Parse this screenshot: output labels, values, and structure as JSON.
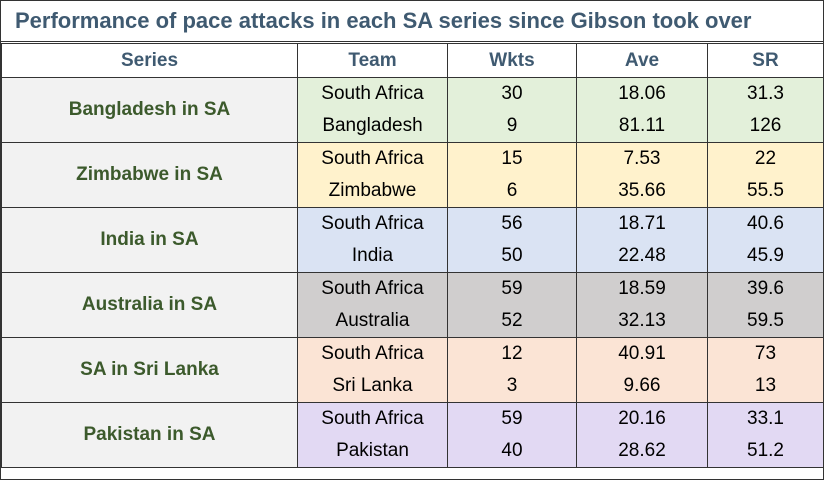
{
  "title": "Performance of pace attacks in each SA series since Gibson took over",
  "columns": {
    "series": "Series",
    "team": "Team",
    "wkts": "Wkts",
    "ave": "Ave",
    "sr": "SR"
  },
  "colors": {
    "title_text": "#3f5a71",
    "series_text": "#3c5a2c",
    "series_bg": "#f2f2f2",
    "bangladesh_bg": "#e3f0da",
    "zimbabwe_bg": "#fff2cc",
    "india_bg": "#dae3f3",
    "australia_bg": "#d0cece",
    "srilanka_bg": "#fbe4d5",
    "pakistan_bg": "#e2d9f3"
  },
  "series": [
    {
      "name": "Bangladesh in SA",
      "color": "#e3f0da",
      "rows": [
        {
          "team": "South Africa",
          "wkts": "30",
          "ave": "18.06",
          "sr": "31.3"
        },
        {
          "team": "Bangladesh",
          "wkts": "9",
          "ave": "81.11",
          "sr": "126"
        }
      ]
    },
    {
      "name": "Zimbabwe in SA",
      "color": "#fff2cc",
      "rows": [
        {
          "team": "South Africa",
          "wkts": "15",
          "ave": "7.53",
          "sr": "22"
        },
        {
          "team": "Zimbabwe",
          "wkts": "6",
          "ave": "35.66",
          "sr": "55.5"
        }
      ]
    },
    {
      "name": "India in SA",
      "color": "#dae3f3",
      "rows": [
        {
          "team": "South Africa",
          "wkts": "56",
          "ave": "18.71",
          "sr": "40.6"
        },
        {
          "team": "India",
          "wkts": "50",
          "ave": "22.48",
          "sr": "45.9"
        }
      ]
    },
    {
      "name": "Australia in SA",
      "color": "#d0cece",
      "rows": [
        {
          "team": "South Africa",
          "wkts": "59",
          "ave": "18.59",
          "sr": "39.6"
        },
        {
          "team": "Australia",
          "wkts": "52",
          "ave": "32.13",
          "sr": "59.5"
        }
      ]
    },
    {
      "name": "SA in Sri Lanka",
      "color": "#fbe4d5",
      "rows": [
        {
          "team": "South Africa",
          "wkts": "12",
          "ave": "40.91",
          "sr": "73"
        },
        {
          "team": "Sri Lanka",
          "wkts": "3",
          "ave": "9.66",
          "sr": "13"
        }
      ]
    },
    {
      "name": "Pakistan in SA",
      "color": "#e2d9f3",
      "rows": [
        {
          "team": "South Africa",
          "wkts": "59",
          "ave": "20.16",
          "sr": "33.1"
        },
        {
          "team": "Pakistan",
          "wkts": "40",
          "ave": "28.62",
          "sr": "51.2"
        }
      ]
    }
  ]
}
